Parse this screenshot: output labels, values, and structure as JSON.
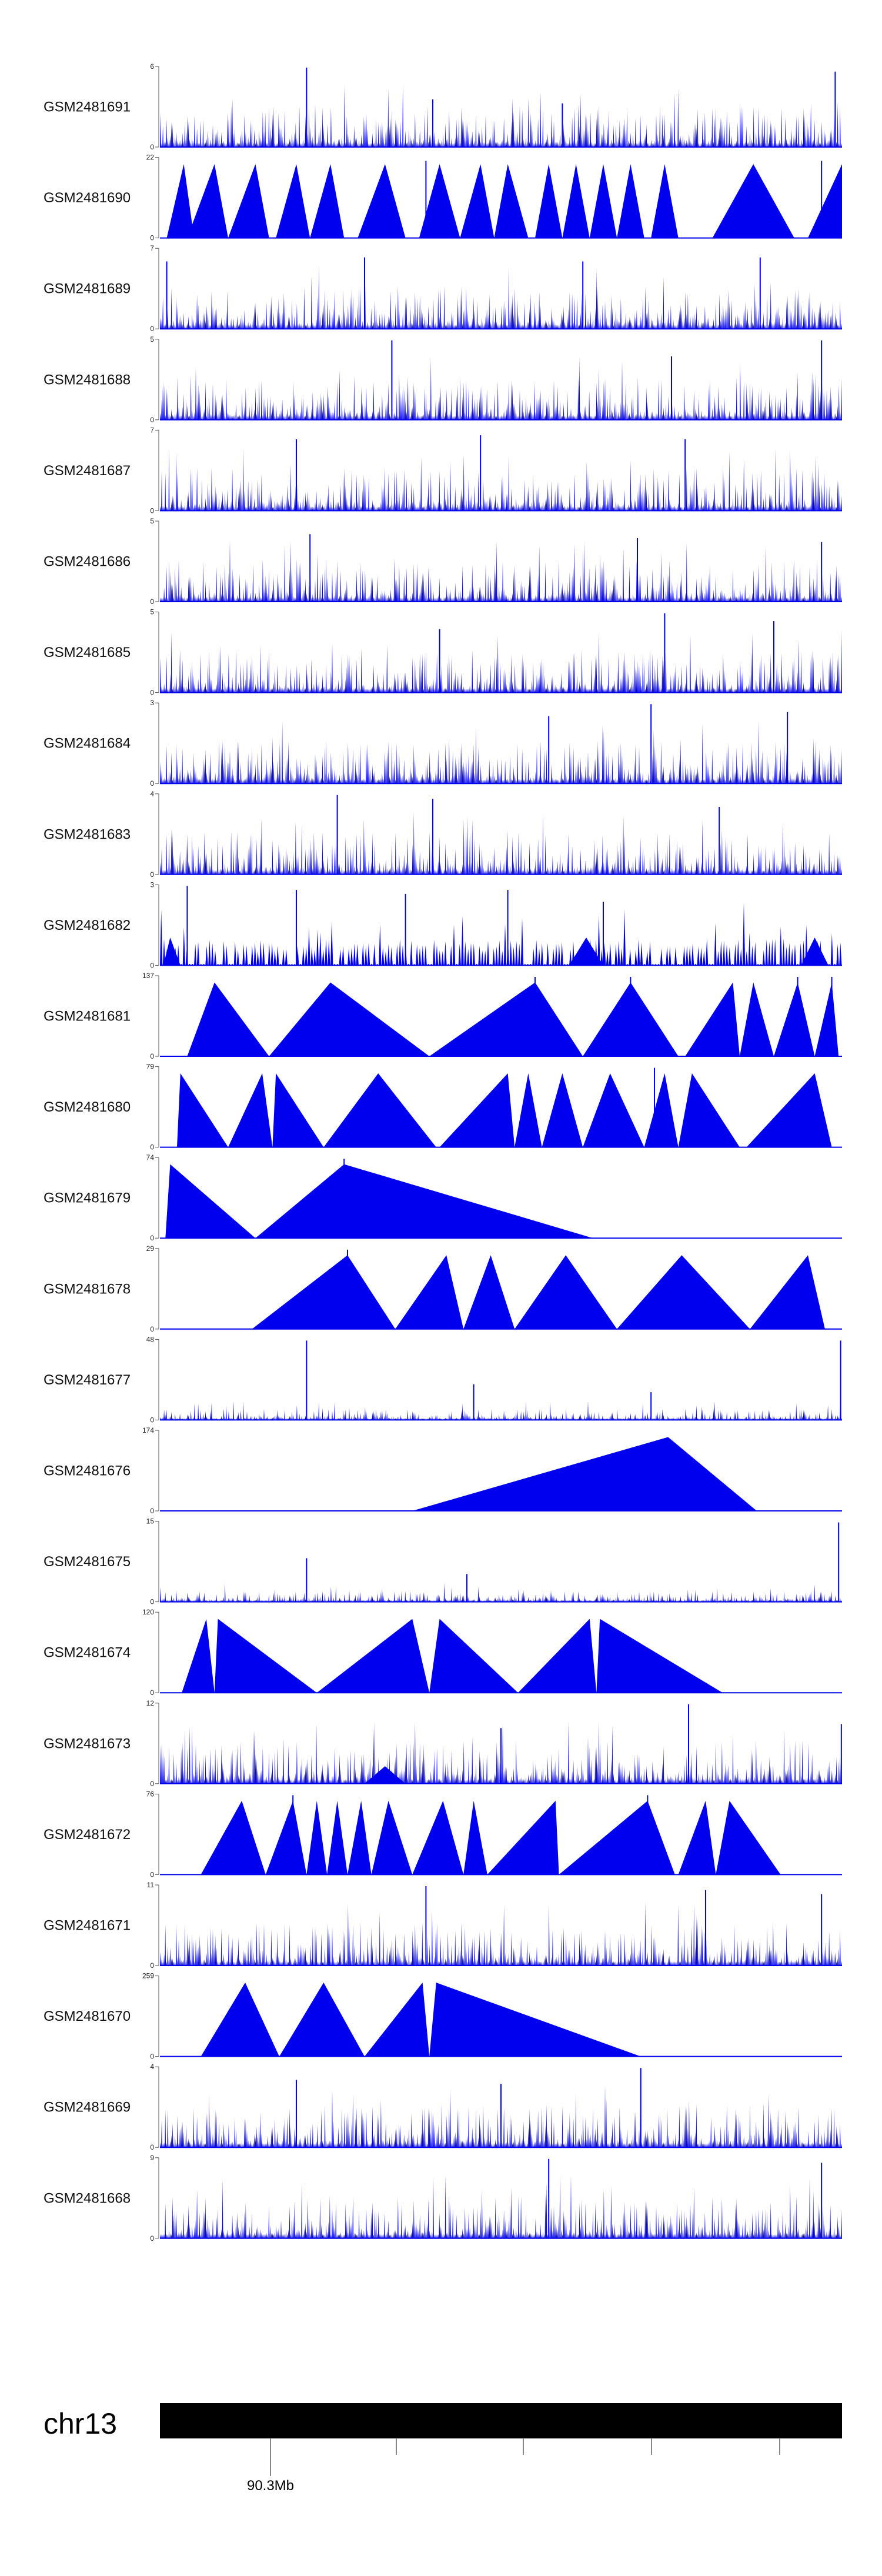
{
  "chart_data": {
    "type": "area",
    "title": "",
    "xlabel": "",
    "ylabel": "",
    "color": "#0000ee",
    "chromosome": "chr13",
    "genome_axis": {
      "labeled_tick": "90.3Mb",
      "unlabeled_ticks": 4
    },
    "tracks": [
      {
        "name": "GSM2481691",
        "ymax": "6",
        "ymin": "0",
        "pattern": "dense",
        "seed": 11,
        "peaks": [
          [
            0.215,
            1.0
          ],
          [
            0.59,
            0.55
          ],
          [
            0.99,
            0.95
          ],
          [
            0.4,
            0.6
          ]
        ]
      },
      {
        "name": "GSM2481690",
        "ymax": "22",
        "ymin": "0",
        "pattern": "triangles",
        "seed": 12,
        "tri": [
          [
            0.01,
            0.035,
            0.05
          ],
          [
            0.04,
            0.08,
            0.1
          ],
          [
            0.1,
            0.14,
            0.16
          ],
          [
            0.17,
            0.2,
            0.22
          ],
          [
            0.22,
            0.25,
            0.27
          ],
          [
            0.29,
            0.33,
            0.36
          ],
          [
            0.38,
            0.41,
            0.44
          ],
          [
            0.44,
            0.47,
            0.49
          ],
          [
            0.49,
            0.51,
            0.54
          ],
          [
            0.55,
            0.57,
            0.59
          ],
          [
            0.59,
            0.61,
            0.63
          ],
          [
            0.63,
            0.65,
            0.67
          ],
          [
            0.67,
            0.69,
            0.71
          ],
          [
            0.72,
            0.74,
            0.76
          ],
          [
            0.81,
            0.87,
            0.93
          ],
          [
            0.95,
            1.0,
            1.05
          ]
        ],
        "peaks": [
          [
            0.39,
            0.97
          ],
          [
            0.97,
            0.97
          ]
        ]
      },
      {
        "name": "GSM2481689",
        "ymax": "7",
        "ymin": "0",
        "pattern": "dense",
        "seed": 13,
        "peaks": [
          [
            0.01,
            0.85
          ],
          [
            0.3,
            0.9
          ],
          [
            0.62,
            0.85
          ],
          [
            0.88,
            0.9
          ]
        ]
      },
      {
        "name": "GSM2481688",
        "ymax": "5",
        "ymin": "0",
        "pattern": "dense",
        "seed": 14,
        "peaks": [
          [
            0.34,
            1.0
          ],
          [
            0.97,
            1.0
          ],
          [
            0.75,
            0.8
          ]
        ]
      },
      {
        "name": "GSM2481687",
        "ymax": "7",
        "ymin": "0",
        "pattern": "dense",
        "seed": 15,
        "peaks": [
          [
            0.2,
            0.9
          ],
          [
            0.47,
            0.95
          ],
          [
            0.77,
            0.9
          ]
        ]
      },
      {
        "name": "GSM2481686",
        "ymax": "5",
        "ymin": "0",
        "pattern": "dense",
        "seed": 16,
        "peaks": [
          [
            0.22,
            0.85
          ],
          [
            0.7,
            0.8
          ],
          [
            0.97,
            0.75
          ]
        ]
      },
      {
        "name": "GSM2481685",
        "ymax": "5",
        "ymin": "0",
        "pattern": "dense",
        "seed": 17,
        "peaks": [
          [
            0.74,
            1.0
          ],
          [
            0.9,
            0.9
          ],
          [
            0.41,
            0.8
          ]
        ]
      },
      {
        "name": "GSM2481684",
        "ymax": "3",
        "ymin": "0",
        "pattern": "dense",
        "seed": 18,
        "peaks": [
          [
            0.72,
            1.0
          ],
          [
            0.57,
            0.85
          ],
          [
            0.92,
            0.9
          ]
        ]
      },
      {
        "name": "GSM2481683",
        "ymax": "4",
        "ymin": "0",
        "pattern": "dense",
        "seed": 19,
        "peaks": [
          [
            0.26,
            1.0
          ],
          [
            0.4,
            0.95
          ],
          [
            0.82,
            0.85
          ]
        ]
      },
      {
        "name": "GSM2481682",
        "ymax": "3",
        "ymin": "0",
        "pattern": "sparse",
        "seed": 20,
        "peaks": [
          [
            0.04,
            1.0
          ],
          [
            0.2,
            0.95
          ],
          [
            0.36,
            0.9
          ],
          [
            0.51,
            0.95
          ],
          [
            0.65,
            0.8
          ]
        ],
        "tri": [
          [
            0.005,
            0.015,
            0.03
          ],
          [
            0.6,
            0.625,
            0.65
          ],
          [
            0.94,
            0.96,
            0.98
          ]
        ]
      },
      {
        "name": "GSM2481681",
        "ymax": "137",
        "ymin": "0",
        "pattern": "triangles",
        "seed": 21,
        "tri": [
          [
            0.04,
            0.08,
            0.16
          ],
          [
            0.16,
            0.25,
            0.395
          ],
          [
            0.395,
            0.55,
            0.62
          ],
          [
            0.62,
            0.69,
            0.76
          ],
          [
            0.77,
            0.84,
            0.85
          ],
          [
            0.85,
            0.87,
            0.9
          ],
          [
            0.9,
            0.935,
            0.96
          ],
          [
            0.96,
            0.985,
            0.995
          ]
        ],
        "peaks": [
          [
            0.08,
            0.6
          ],
          [
            0.55,
            1.0
          ],
          [
            0.69,
            1.0
          ],
          [
            0.935,
            1.0
          ],
          [
            0.985,
            1.0
          ]
        ]
      },
      {
        "name": "GSM2481680",
        "ymax": "79",
        "ymin": "0",
        "pattern": "triangles",
        "seed": 22,
        "tri": [
          [
            0.025,
            0.03,
            0.1
          ],
          [
            0.1,
            0.15,
            0.165
          ],
          [
            0.165,
            0.17,
            0.24
          ],
          [
            0.24,
            0.32,
            0.405
          ],
          [
            0.41,
            0.51,
            0.52
          ],
          [
            0.52,
            0.54,
            0.56
          ],
          [
            0.56,
            0.59,
            0.62
          ],
          [
            0.62,
            0.66,
            0.71
          ],
          [
            0.71,
            0.74,
            0.76
          ],
          [
            0.76,
            0.78,
            0.85
          ],
          [
            0.86,
            0.96,
            0.985
          ]
        ],
        "peaks": [
          [
            0.17,
            0.5
          ],
          [
            0.725,
            1.0
          ]
        ]
      },
      {
        "name": "GSM2481679",
        "ymax": "74",
        "ymin": "0",
        "pattern": "triangles",
        "seed": 23,
        "tri": [
          [
            0.008,
            0.015,
            0.14
          ],
          [
            0.14,
            0.27,
            0.635
          ]
        ],
        "peaks": [
          [
            0.27,
            1.0
          ]
        ]
      },
      {
        "name": "GSM2481678",
        "ymax": "29",
        "ymin": "0",
        "pattern": "triangles",
        "seed": 24,
        "tri": [
          [
            0.135,
            0.275,
            0.345
          ],
          [
            0.345,
            0.42,
            0.445
          ],
          [
            0.445,
            0.485,
            0.52
          ],
          [
            0.52,
            0.595,
            0.67
          ],
          [
            0.67,
            0.765,
            0.865
          ],
          [
            0.865,
            0.95,
            0.975
          ]
        ],
        "peaks": [
          [
            0.275,
            1.0
          ]
        ]
      },
      {
        "name": "GSM2481677",
        "ymax": "48",
        "ymin": "0",
        "pattern": "low",
        "seed": 25,
        "peaks": [
          [
            0.215,
            1.0
          ],
          [
            0.46,
            0.45
          ],
          [
            0.72,
            0.35
          ],
          [
            0.998,
            1.0
          ]
        ]
      },
      {
        "name": "GSM2481676",
        "ymax": "174",
        "ymin": "0",
        "pattern": "triangles",
        "seed": 26,
        "tri": [
          [
            0.37,
            0.745,
            0.875
          ]
        ],
        "peaks": []
      },
      {
        "name": "GSM2481675",
        "ymax": "15",
        "ymin": "0",
        "pattern": "low",
        "seed": 27,
        "peaks": [
          [
            0.995,
            1.0
          ],
          [
            0.215,
            0.55
          ],
          [
            0.45,
            0.35
          ]
        ]
      },
      {
        "name": "GSM2481674",
        "ymax": "120",
        "ymin": "0",
        "pattern": "triangles",
        "seed": 28,
        "tri": [
          [
            0.032,
            0.068,
            0.08
          ],
          [
            0.08,
            0.085,
            0.23
          ],
          [
            0.23,
            0.37,
            0.395
          ],
          [
            0.395,
            0.41,
            0.525
          ],
          [
            0.525,
            0.63,
            0.64
          ],
          [
            0.64,
            0.645,
            0.825
          ]
        ],
        "peaks": []
      },
      {
        "name": "GSM2481673",
        "ymax": "12",
        "ymin": "0",
        "pattern": "dense",
        "seed": 29,
        "peaks": [
          [
            0.775,
            1.0
          ],
          [
            0.5,
            0.7
          ],
          [
            0.999,
            0.75
          ]
        ],
        "tri": [
          [
            0.3,
            0.33,
            0.36
          ]
        ]
      },
      {
        "name": "GSM2481672",
        "ymax": "76",
        "ymin": "0",
        "pattern": "triangles",
        "seed": 30,
        "tri": [
          [
            0.06,
            0.12,
            0.155
          ],
          [
            0.155,
            0.195,
            0.215
          ],
          [
            0.215,
            0.23,
            0.245
          ],
          [
            0.245,
            0.26,
            0.275
          ],
          [
            0.275,
            0.295,
            0.31
          ],
          [
            0.31,
            0.335,
            0.37
          ],
          [
            0.37,
            0.415,
            0.445
          ],
          [
            0.445,
            0.46,
            0.48
          ],
          [
            0.48,
            0.58,
            0.585
          ],
          [
            0.585,
            0.715,
            0.755
          ],
          [
            0.76,
            0.8,
            0.815
          ],
          [
            0.815,
            0.835,
            0.91
          ]
        ],
        "peaks": [
          [
            0.195,
            1.0
          ],
          [
            0.715,
            1.0
          ],
          [
            0.295,
            0.6
          ],
          [
            0.4,
            0.45
          ]
        ]
      },
      {
        "name": "GSM2481671",
        "ymax": "11",
        "ymin": "0",
        "pattern": "dense",
        "seed": 31,
        "peaks": [
          [
            0.39,
            1.0
          ],
          [
            0.8,
            0.95
          ],
          [
            0.97,
            0.9
          ]
        ]
      },
      {
        "name": "GSM2481670",
        "ymax": "259",
        "ymin": "0",
        "pattern": "triangles",
        "seed": 32,
        "tri": [
          [
            0.06,
            0.125,
            0.175
          ],
          [
            0.175,
            0.24,
            0.3
          ],
          [
            0.3,
            0.385,
            0.395
          ],
          [
            0.395,
            0.405,
            0.705
          ]
        ],
        "peaks": []
      },
      {
        "name": "GSM2481669",
        "ymax": "4",
        "ymin": "0",
        "pattern": "dense",
        "seed": 33,
        "peaks": [
          [
            0.705,
            1.0
          ],
          [
            0.2,
            0.85
          ],
          [
            0.5,
            0.8
          ]
        ]
      },
      {
        "name": "GSM2481668",
        "ymax": "9",
        "ymin": "0",
        "pattern": "dense",
        "seed": 34,
        "peaks": [
          [
            0.57,
            1.0
          ],
          [
            0.97,
            0.95
          ]
        ]
      }
    ]
  }
}
